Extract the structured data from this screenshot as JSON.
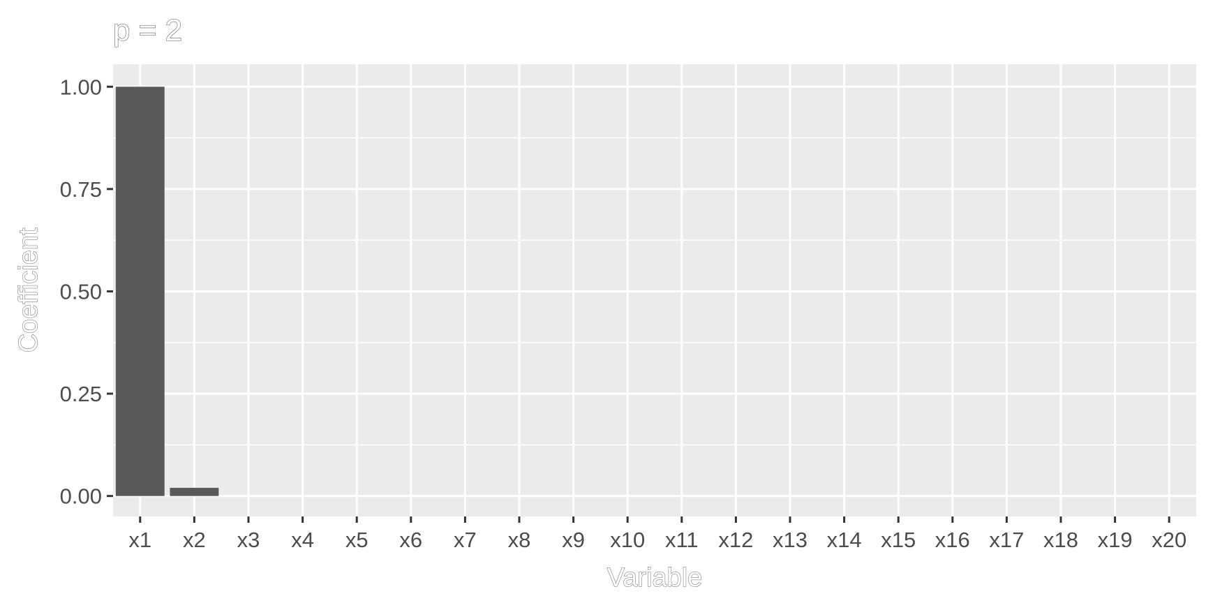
{
  "chart_data": {
    "type": "bar",
    "title": "p = 2",
    "xlabel": "Variable",
    "ylabel": "Coefficient",
    "categories": [
      "x1",
      "x2",
      "x3",
      "x4",
      "x5",
      "x6",
      "x7",
      "x8",
      "x9",
      "x10",
      "x11",
      "x12",
      "x13",
      "x14",
      "x15",
      "x16",
      "x17",
      "x18",
      "x19",
      "x20"
    ],
    "values": [
      1.0,
      0.02,
      0,
      0,
      0,
      0,
      0,
      0,
      0,
      0,
      0,
      0,
      0,
      0,
      0,
      0,
      0,
      0,
      0,
      0
    ],
    "ylim": [
      -0.05,
      1.055
    ],
    "yticks": [
      0.0,
      0.25,
      0.5,
      0.75,
      1.0
    ],
    "ytick_labels": [
      "0.00",
      "0.25",
      "0.50",
      "0.75",
      "1.00"
    ],
    "grid": true,
    "legend": "none",
    "colors": {
      "panel": "#ebebeb",
      "grid": "#ffffff",
      "bar": "#595959",
      "tick": "#333333",
      "text": "#4d4d4d"
    }
  }
}
